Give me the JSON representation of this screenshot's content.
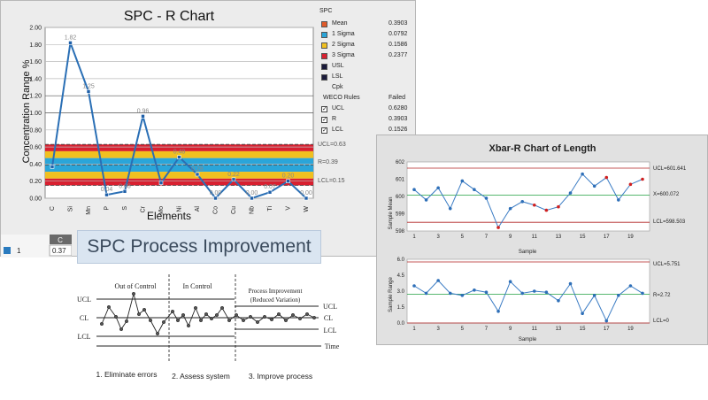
{
  "spc_r_chart": {
    "title": "SPC - R Chart",
    "ylabel": "Concentration Range %",
    "xlabel": "Elements",
    "ucl_label": "UCL=0.63",
    "mean_label": "R=0.39",
    "lcl_label": "LCL=0.15",
    "legend": {
      "heading": "SPC",
      "items": [
        {
          "label": "Mean",
          "value": "0.3903",
          "color": "#e05a2a",
          "checked": true
        },
        {
          "label": "1 Sigma",
          "value": "0.0792",
          "color": "#2aa5d9",
          "checked": true
        },
        {
          "label": "2 Sigma",
          "value": "0.1586",
          "color": "#f0c020",
          "checked": true
        },
        {
          "label": "3 Sigma",
          "value": "0.2377",
          "color": "#d82030",
          "checked": true
        },
        {
          "label": "USL",
          "value": "",
          "color": "#1a1a3a",
          "checked": false
        },
        {
          "label": "LSL",
          "value": "",
          "color": "#1a1a3a",
          "checked": false
        }
      ],
      "cpk_label": "Cpk",
      "weco_label": "WECO Rules",
      "failed_label": "Failed",
      "weco_items": [
        {
          "label": "UCL",
          "value": "0.6280"
        },
        {
          "label": "R",
          "value": "0.3903"
        },
        {
          "label": "LCL",
          "value": "0.1526"
        }
      ]
    },
    "grid": {
      "col_header": "C",
      "row_number": "1",
      "cell_value": "0.37"
    }
  },
  "process_improvement": {
    "title": "SPC Process Improvement",
    "section_out": "Out of Control",
    "section_in": "In Control",
    "section_improve_1": "Process Improvement",
    "section_improve_2": "(Reduced Variation)",
    "left_ucl": "UCL",
    "left_cl": "CL",
    "left_lcl": "LCL",
    "right_ucl": "UCL",
    "right_cl": "CL",
    "right_lcl": "LCL",
    "time_label": "Time",
    "step1": "1. Eliminate errors",
    "step2": "2. Assess system",
    "step3": "3. Improve process"
  },
  "xbar_r_chart": {
    "title": "Xbar-R Chart of Length",
    "mean_ylabel": "Sample Mean",
    "range_ylabel": "Sample Range",
    "xlabel": "Sample",
    "mean_ucl_label": "UCL=601.641",
    "mean_center_label": "X=600.072",
    "mean_lcl_label": "LCL=598.503",
    "range_ucl_label": "UCL=5.751",
    "range_center_label": "R=2.72",
    "range_lcl_label": "LCL=0"
  },
  "chart_data": [
    {
      "type": "line",
      "title": "SPC - R Chart",
      "xlabel": "Elements",
      "ylabel": "Concentration Range %",
      "categories": [
        "C",
        "Si",
        "Mn",
        "P",
        "S",
        "Cr",
        "Mo",
        "Ni",
        "Al",
        "Co",
        "Cu",
        "Nb",
        "Ti",
        "V",
        "W"
      ],
      "values": [
        0.37,
        1.82,
        1.25,
        0.04,
        0.08,
        0.96,
        0.18,
        0.48,
        0.28,
        0.0,
        0.22,
        0.0,
        0.07,
        0.2,
        0.0
      ],
      "data_labels": [
        "",
        "1.82",
        "1.25",
        "0.04",
        "0.08",
        "0.96",
        "",
        "0.48",
        "0.28",
        "0.00",
        "0.22",
        "0.00",
        "0.07",
        "0.20",
        "0.00"
      ],
      "ylim": [
        0,
        2.0
      ],
      "yticks": [
        "0.00",
        "0.20",
        "0.40",
        "0.60",
        "0.80",
        "1.00",
        "1.20",
        "1.40",
        "1.60",
        "1.80",
        "2.00"
      ],
      "ucl": 0.63,
      "center": 0.39,
      "lcl": 0.15,
      "grid": true
    },
    {
      "type": "line",
      "title": "Xbar-R Chart of Length",
      "xlabel": "Sample",
      "ylabel": "Sample Mean",
      "x": [
        1,
        2,
        3,
        4,
        5,
        6,
        7,
        8,
        9,
        10,
        11,
        12,
        13,
        14,
        15,
        16,
        17,
        18,
        19,
        20
      ],
      "values": [
        600.4,
        599.8,
        600.5,
        599.3,
        600.9,
        600.4,
        599.9,
        598.2,
        599.3,
        599.7,
        599.5,
        599.2,
        599.4,
        600.2,
        601.3,
        600.6,
        601.1,
        599.8,
        600.7,
        601.0
      ],
      "ylim": [
        598,
        602
      ],
      "yticks": [
        "598",
        "599",
        "600",
        "601",
        "602"
      ],
      "xticks": [
        "1",
        "3",
        "5",
        "7",
        "9",
        "11",
        "13",
        "15",
        "17",
        "19"
      ],
      "ucl": 601.641,
      "center": 600.072,
      "lcl": 598.503
    },
    {
      "type": "line",
      "title": "",
      "xlabel": "Sample",
      "ylabel": "Sample Range",
      "x": [
        1,
        2,
        3,
        4,
        5,
        6,
        7,
        8,
        9,
        10,
        11,
        12,
        13,
        14,
        15,
        16,
        17,
        18,
        19,
        20
      ],
      "values": [
        3.5,
        2.8,
        4.0,
        2.8,
        2.6,
        3.1,
        2.9,
        1.1,
        3.9,
        2.8,
        3.0,
        2.9,
        2.1,
        3.7,
        0.9,
        2.6,
        0.2,
        2.6,
        3.5,
        2.8
      ],
      "ylim": [
        0,
        6.0
      ],
      "yticks": [
        "0.0",
        "1.5",
        "3.0",
        "4.5",
        "6.0"
      ],
      "xticks": [
        "1",
        "3",
        "5",
        "7",
        "9",
        "11",
        "13",
        "15",
        "17",
        "19"
      ],
      "ucl": 5.751,
      "center": 2.72,
      "lcl": 0
    }
  ]
}
